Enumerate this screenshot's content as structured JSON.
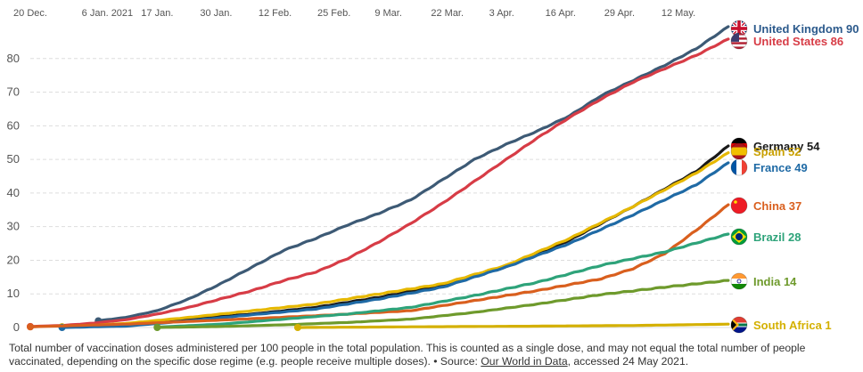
{
  "chart_data": {
    "type": "line",
    "x_ticks": [
      "20 Dec.",
      "6 Jan. 2021",
      "17 Jan.",
      "30 Jan.",
      "12 Feb.",
      "25 Feb.",
      "9 Mar.",
      "22 Mar.",
      "3 Apr.",
      "16 Apr.",
      "29 Apr.",
      "12 May."
    ],
    "x_tick_dates": [
      "2020-12-20",
      "2021-01-06",
      "2021-01-17",
      "2021-01-30",
      "2021-02-12",
      "2021-02-25",
      "2021-03-09",
      "2021-03-22",
      "2021-04-03",
      "2021-04-16",
      "2021-04-29",
      "2021-05-12"
    ],
    "x_range": [
      "2020-12-20",
      "2021-05-24"
    ],
    "ylim": [
      0,
      90
    ],
    "y_ticks": [
      0,
      10,
      20,
      30,
      40,
      50,
      60,
      70,
      80
    ],
    "grid": "horizontal dashed",
    "series": [
      {
        "name": "United Kingdom",
        "label": "United Kingdom 90",
        "color": "#3d5a75",
        "label_color": "#2c5a8c",
        "flag": "uk-flag",
        "points": [
          [
            "2021-01-04",
            2.0
          ],
          [
            "2021-01-10",
            3.0
          ],
          [
            "2021-01-17",
            5.0
          ],
          [
            "2021-01-24",
            8.5
          ],
          [
            "2021-01-31",
            13.0
          ],
          [
            "2021-02-07",
            18.0
          ],
          [
            "2021-02-14",
            23.0
          ],
          [
            "2021-02-21",
            26.5
          ],
          [
            "2021-02-28",
            30.5
          ],
          [
            "2021-03-07",
            34.0
          ],
          [
            "2021-03-14",
            38.0
          ],
          [
            "2021-03-21",
            44.0
          ],
          [
            "2021-03-28",
            50.0
          ],
          [
            "2021-04-04",
            54.5
          ],
          [
            "2021-04-11",
            58.5
          ],
          [
            "2021-04-18",
            63.0
          ],
          [
            "2021-04-25",
            69.0
          ],
          [
            "2021-05-02",
            73.5
          ],
          [
            "2021-05-09",
            78.0
          ],
          [
            "2021-05-16",
            83.0
          ],
          [
            "2021-05-23",
            89.5
          ]
        ]
      },
      {
        "name": "United States",
        "label": "United States 86",
        "color": "#d73c46",
        "label_color": "#d73c46",
        "flag": "us-flag",
        "points": [
          [
            "2020-12-20",
            0.3
          ],
          [
            "2020-12-27",
            0.6
          ],
          [
            "2021-01-03",
            1.3
          ],
          [
            "2021-01-10",
            2.3
          ],
          [
            "2021-01-17",
            4.0
          ],
          [
            "2021-01-24",
            6.0
          ],
          [
            "2021-01-31",
            8.5
          ],
          [
            "2021-02-07",
            11.0
          ],
          [
            "2021-02-14",
            14.0
          ],
          [
            "2021-02-21",
            16.5
          ],
          [
            "2021-02-28",
            20.5
          ],
          [
            "2021-03-07",
            25.5
          ],
          [
            "2021-03-14",
            31.0
          ],
          [
            "2021-03-21",
            37.0
          ],
          [
            "2021-03-28",
            43.5
          ],
          [
            "2021-04-04",
            50.0
          ],
          [
            "2021-04-11",
            56.5
          ],
          [
            "2021-04-18",
            62.5
          ],
          [
            "2021-04-25",
            68.0
          ],
          [
            "2021-05-02",
            73.0
          ],
          [
            "2021-05-09",
            77.0
          ],
          [
            "2021-05-16",
            81.0
          ],
          [
            "2021-05-23",
            85.8
          ]
        ]
      },
      {
        "name": "Germany",
        "label": "Germany 54",
        "color": "#1a1a1a",
        "label_color": "#1a1a1a",
        "flag": "germany-flag",
        "points": [
          [
            "2020-12-27",
            0.2
          ],
          [
            "2021-01-10",
            1.0
          ],
          [
            "2021-01-24",
            2.5
          ],
          [
            "2021-02-07",
            4.0
          ],
          [
            "2021-02-21",
            6.0
          ],
          [
            "2021-03-07",
            9.0
          ],
          [
            "2021-03-21",
            12.5
          ],
          [
            "2021-04-04",
            18.0
          ],
          [
            "2021-04-18",
            26.0
          ],
          [
            "2021-05-02",
            36.0
          ],
          [
            "2021-05-16",
            46.5
          ],
          [
            "2021-05-23",
            54.0
          ]
        ]
      },
      {
        "name": "Spain",
        "label": "Spain 52",
        "color": "#e6b800",
        "label_color": "#c9a000",
        "flag": "spain-flag",
        "points": [
          [
            "2020-12-27",
            0.2
          ],
          [
            "2021-01-10",
            1.2
          ],
          [
            "2021-01-24",
            3.0
          ],
          [
            "2021-02-07",
            5.0
          ],
          [
            "2021-02-21",
            7.0
          ],
          [
            "2021-03-07",
            10.0
          ],
          [
            "2021-03-21",
            13.0
          ],
          [
            "2021-04-04",
            18.5
          ],
          [
            "2021-04-18",
            26.5
          ],
          [
            "2021-05-02",
            36.0
          ],
          [
            "2021-05-16",
            46.0
          ],
          [
            "2021-05-23",
            52.0
          ]
        ]
      },
      {
        "name": "France",
        "label": "France 49",
        "color": "#1f6aa5",
        "label_color": "#1f6aa5",
        "flag": "france-flag",
        "points": [
          [
            "2020-12-27",
            0.0
          ],
          [
            "2021-01-10",
            0.4
          ],
          [
            "2021-01-24",
            2.0
          ],
          [
            "2021-02-07",
            3.8
          ],
          [
            "2021-02-21",
            5.5
          ],
          [
            "2021-03-07",
            8.5
          ],
          [
            "2021-03-21",
            12.0
          ],
          [
            "2021-04-04",
            18.0
          ],
          [
            "2021-04-18",
            25.0
          ],
          [
            "2021-05-02",
            33.5
          ],
          [
            "2021-05-16",
            42.5
          ],
          [
            "2021-05-23",
            49.0
          ]
        ]
      },
      {
        "name": "China",
        "label": "China 37",
        "color": "#d95f1e",
        "label_color": "#d95f1e",
        "flag": "china-flag",
        "points": [
          [
            "2020-12-20",
            0.2
          ],
          [
            "2021-01-10",
            1.0
          ],
          [
            "2021-01-31",
            2.2
          ],
          [
            "2021-02-21",
            3.5
          ],
          [
            "2021-03-14",
            5.0
          ],
          [
            "2021-03-28",
            8.0
          ],
          [
            "2021-04-11",
            11.0
          ],
          [
            "2021-04-25",
            14.5
          ],
          [
            "2021-05-02",
            17.5
          ],
          [
            "2021-05-09",
            22.0
          ],
          [
            "2021-05-16",
            29.0
          ],
          [
            "2021-05-23",
            36.5
          ]
        ]
      },
      {
        "name": "Brazil",
        "label": "Brazil 28",
        "color": "#2ea37a",
        "label_color": "#2ea37a",
        "flag": "brazil-flag",
        "points": [
          [
            "2021-01-17",
            0.1
          ],
          [
            "2021-01-31",
            1.0
          ],
          [
            "2021-02-14",
            2.5
          ],
          [
            "2021-02-28",
            4.0
          ],
          [
            "2021-03-14",
            6.0
          ],
          [
            "2021-03-28",
            9.5
          ],
          [
            "2021-04-11",
            13.5
          ],
          [
            "2021-04-25",
            18.5
          ],
          [
            "2021-05-09",
            22.5
          ],
          [
            "2021-05-23",
            27.8
          ]
        ]
      },
      {
        "name": "India",
        "label": "India 14",
        "color": "#6e9a2c",
        "label_color": "#6e9a2c",
        "flag": "india-flag",
        "points": [
          [
            "2021-01-17",
            0.0
          ],
          [
            "2021-01-31",
            0.3
          ],
          [
            "2021-02-14",
            0.8
          ],
          [
            "2021-02-28",
            1.5
          ],
          [
            "2021-03-14",
            2.5
          ],
          [
            "2021-03-28",
            4.5
          ],
          [
            "2021-04-11",
            7.0
          ],
          [
            "2021-04-25",
            9.8
          ],
          [
            "2021-05-09",
            12.0
          ],
          [
            "2021-05-23",
            14.0
          ]
        ]
      },
      {
        "name": "South Africa",
        "label": "South Africa 1",
        "color": "#d4b000",
        "label_color": "#d4b000",
        "flag": "south-africa-flag",
        "points": [
          [
            "2021-02-17",
            0.0
          ],
          [
            "2021-03-14",
            0.2
          ],
          [
            "2021-04-11",
            0.4
          ],
          [
            "2021-05-02",
            0.6
          ],
          [
            "2021-05-23",
            1.0
          ]
        ]
      }
    ]
  },
  "caption": {
    "text": "Total number of vaccination doses administered per 100 people in the total population. This is counted as a single dose, and may not equal the total number of people vaccinated, depending on the specific dose regime (e.g. people receive multiple doses). • Source: ",
    "source_link": "Our World in Data",
    "suffix": ", accessed 24 May 2021."
  }
}
